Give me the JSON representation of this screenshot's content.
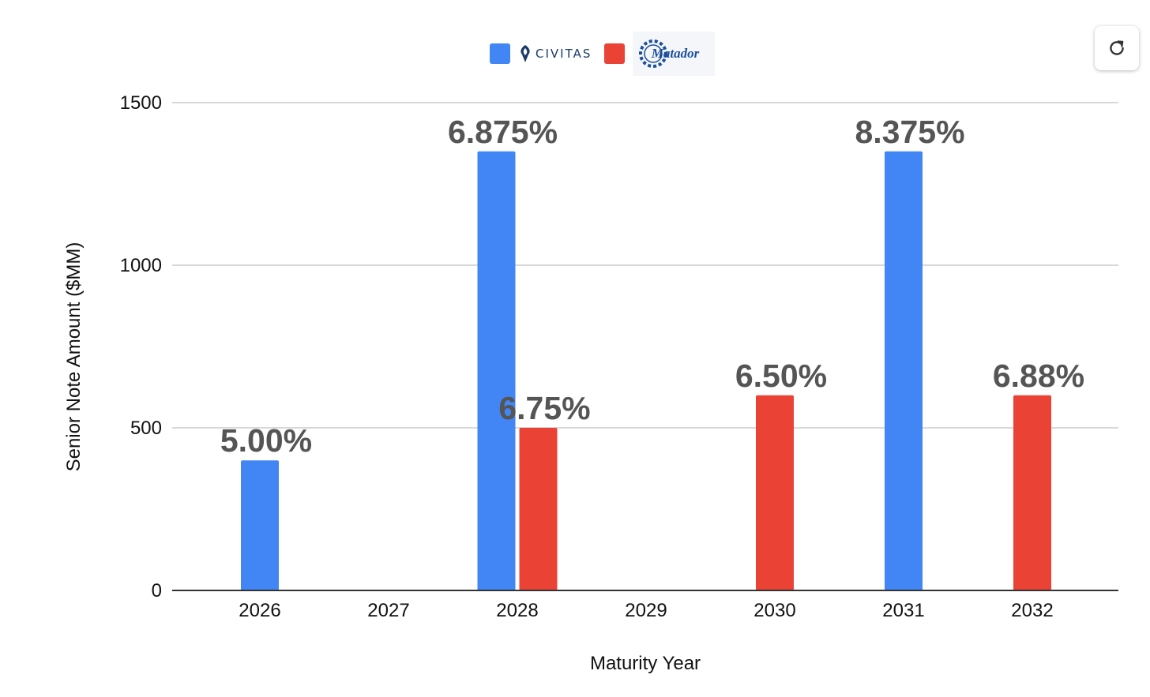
{
  "chart_data": {
    "type": "bar",
    "categories": [
      "2026",
      "2027",
      "2028",
      "2029",
      "2030",
      "2031",
      "2032"
    ],
    "series": [
      {
        "name": "CIVITAS",
        "color": "#4285f4",
        "values": [
          400,
          null,
          1350,
          null,
          null,
          1350,
          null
        ]
      },
      {
        "name": "Matador",
        "color": "#ea4335",
        "values": [
          null,
          null,
          500,
          null,
          600,
          null,
          600
        ]
      }
    ],
    "data_labels": [
      {
        "category": "2026",
        "series": 0,
        "text": "5.00%"
      },
      {
        "category": "2028",
        "series": 0,
        "text": "6.875%"
      },
      {
        "category": "2028",
        "series": 1,
        "text": "6.75%"
      },
      {
        "category": "2030",
        "series": 1,
        "text": "6.50%"
      },
      {
        "category": "2031",
        "series": 0,
        "text": "8.375%"
      },
      {
        "category": "2032",
        "series": 1,
        "text": "6.88%"
      }
    ],
    "yticks": [
      0,
      500,
      1000,
      1500
    ],
    "ylim": [
      0,
      1500
    ],
    "xlabel": "Maturity Year",
    "ylabel": "Senior Note Amount ($MM)",
    "grid": true,
    "legend_position": "top-center"
  },
  "legend": {
    "civitas_logo_text": "CIVITAS",
    "matador_logo_text": "Matador",
    "civitas_color": "#4285f4",
    "matador_color": "#ea4335"
  },
  "toolbar": {
    "refresh_icon": "refresh-icon"
  }
}
